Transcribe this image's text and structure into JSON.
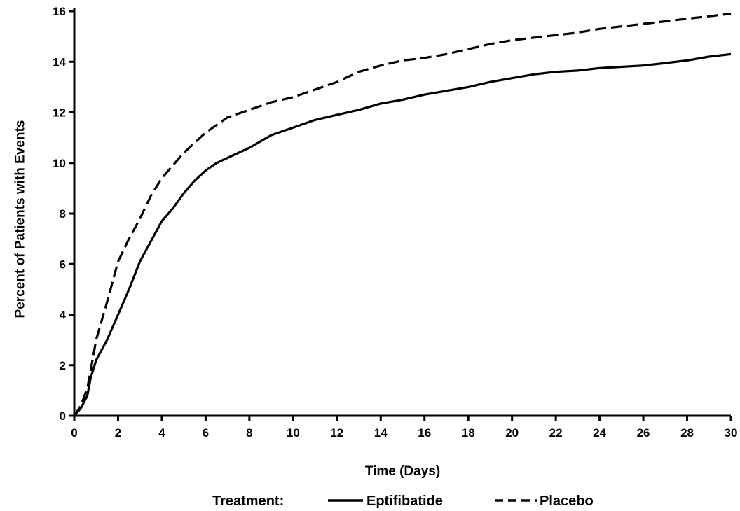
{
  "chart_data": {
    "type": "line",
    "xlabel": "Time (Days)",
    "ylabel": "Percent of Patients with Events",
    "xlim": [
      0,
      30
    ],
    "ylim": [
      0,
      16
    ],
    "x_ticks": [
      0,
      2,
      4,
      6,
      8,
      10,
      12,
      14,
      16,
      18,
      20,
      22,
      24,
      26,
      28,
      30
    ],
    "y_ticks": [
      0,
      2,
      4,
      6,
      8,
      10,
      12,
      14,
      16
    ],
    "grid": false,
    "legend": {
      "title": "Treatment:",
      "placement": "bottom"
    },
    "series": [
      {
        "name": "Eptifibatide",
        "line_style": "solid",
        "color": "#000000",
        "points": [
          [
            0,
            0
          ],
          [
            0.3,
            0.3
          ],
          [
            0.6,
            0.8
          ],
          [
            0.75,
            1.5
          ],
          [
            1.0,
            2.2
          ],
          [
            1.5,
            3.0
          ],
          [
            2.0,
            4.0
          ],
          [
            2.5,
            5.0
          ],
          [
            3.0,
            6.1
          ],
          [
            3.5,
            6.9
          ],
          [
            4.0,
            7.7
          ],
          [
            4.5,
            8.2
          ],
          [
            5.0,
            8.8
          ],
          [
            5.5,
            9.3
          ],
          [
            6.0,
            9.7
          ],
          [
            6.5,
            10.0
          ],
          [
            7.0,
            10.2
          ],
          [
            8.0,
            10.6
          ],
          [
            9.0,
            11.1
          ],
          [
            10.0,
            11.4
          ],
          [
            11.0,
            11.7
          ],
          [
            12.0,
            11.9
          ],
          [
            13.0,
            12.1
          ],
          [
            14.0,
            12.35
          ],
          [
            15.0,
            12.5
          ],
          [
            16.0,
            12.7
          ],
          [
            17.0,
            12.85
          ],
          [
            18.0,
            13.0
          ],
          [
            19.0,
            13.2
          ],
          [
            20.0,
            13.35
          ],
          [
            21.0,
            13.5
          ],
          [
            22.0,
            13.6
          ],
          [
            23.0,
            13.65
          ],
          [
            24.0,
            13.75
          ],
          [
            25.0,
            13.8
          ],
          [
            26.0,
            13.85
          ],
          [
            27.0,
            13.95
          ],
          [
            28.0,
            14.05
          ],
          [
            29.0,
            14.2
          ],
          [
            30.0,
            14.3
          ]
        ]
      },
      {
        "name": "Placebo",
        "line_style": "dashed",
        "color": "#000000",
        "points": [
          [
            0,
            0
          ],
          [
            0.3,
            0.4
          ],
          [
            0.6,
            1.1
          ],
          [
            0.75,
            1.8
          ],
          [
            1.0,
            3.0
          ],
          [
            1.5,
            4.5
          ],
          [
            2.0,
            6.1
          ],
          [
            2.5,
            7.0
          ],
          [
            3.0,
            7.8
          ],
          [
            3.5,
            8.7
          ],
          [
            4.0,
            9.4
          ],
          [
            4.5,
            9.9
          ],
          [
            5.0,
            10.4
          ],
          [
            5.5,
            10.8
          ],
          [
            6.0,
            11.2
          ],
          [
            6.5,
            11.5
          ],
          [
            7.0,
            11.8
          ],
          [
            8.0,
            12.1
          ],
          [
            9.0,
            12.4
          ],
          [
            10.0,
            12.6
          ],
          [
            11.0,
            12.9
          ],
          [
            12.0,
            13.2
          ],
          [
            13.0,
            13.6
          ],
          [
            14.0,
            13.85
          ],
          [
            15.0,
            14.05
          ],
          [
            16.0,
            14.15
          ],
          [
            17.0,
            14.3
          ],
          [
            18.0,
            14.5
          ],
          [
            19.0,
            14.7
          ],
          [
            20.0,
            14.85
          ],
          [
            21.0,
            14.95
          ],
          [
            22.0,
            15.05
          ],
          [
            23.0,
            15.15
          ],
          [
            24.0,
            15.3
          ],
          [
            25.0,
            15.4
          ],
          [
            26.0,
            15.5
          ],
          [
            27.0,
            15.6
          ],
          [
            28.0,
            15.7
          ],
          [
            29.0,
            15.8
          ],
          [
            30.0,
            15.9
          ]
        ]
      }
    ]
  }
}
